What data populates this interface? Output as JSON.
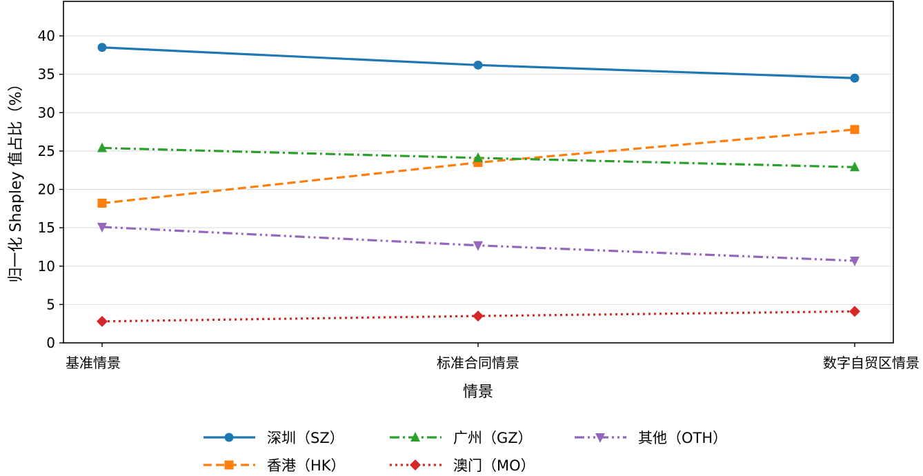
{
  "chart_data": {
    "type": "line",
    "title": "",
    "xlabel": "情景",
    "ylabel": "归一化 Shapley 值占比（%）",
    "categories": [
      "基准情景",
      "标准合同情景",
      "数字自贸区情景"
    ],
    "ylim": [
      0,
      44.5
    ],
    "yticks": [
      0,
      5,
      10,
      15,
      20,
      25,
      30,
      35,
      40
    ],
    "grid": "horizontal",
    "legend_position": "bottom-center",
    "series": [
      {
        "name": "深圳（SZ）",
        "values": [
          38.5,
          36.2,
          34.5
        ],
        "color": "#1f77b4",
        "marker": "circle",
        "dash": "solid"
      },
      {
        "name": "香港（HK）",
        "values": [
          18.2,
          23.5,
          27.8
        ],
        "color": "#ff7f0e",
        "marker": "square",
        "dash": "dashed"
      },
      {
        "name": "广州（GZ）",
        "values": [
          25.4,
          24.1,
          22.9
        ],
        "color": "#2ca02c",
        "marker": "triangle-up",
        "dash": "dashdot"
      },
      {
        "name": "澳门（MO）",
        "values": [
          2.8,
          3.5,
          4.1
        ],
        "color": "#d62728",
        "marker": "diamond",
        "dash": "dotted"
      },
      {
        "name": "其他（OTH）",
        "values": [
          15.1,
          12.7,
          10.7
        ],
        "color": "#9467bd",
        "marker": "triangle-down",
        "dash": "dashdotdot"
      }
    ]
  }
}
